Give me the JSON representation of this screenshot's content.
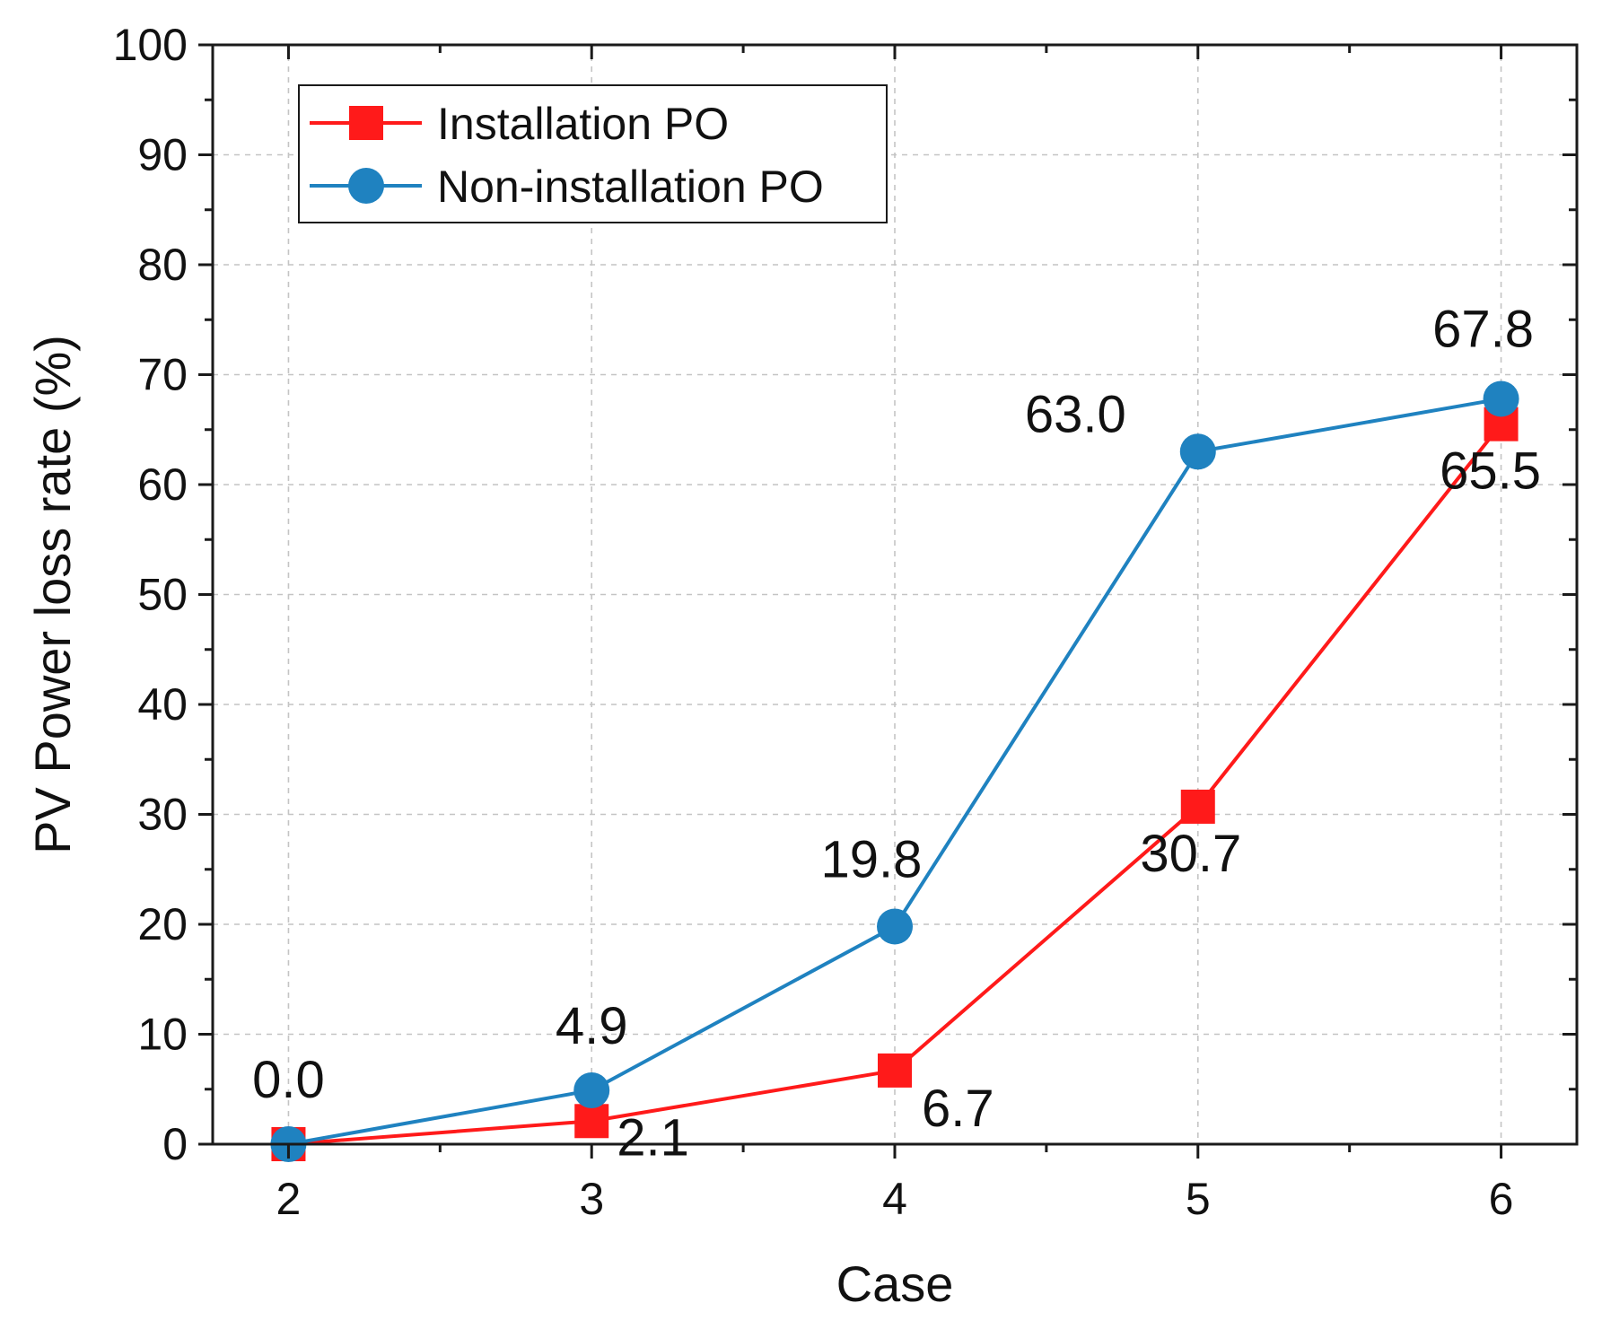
{
  "chart_data": {
    "type": "line",
    "xlabel": "Case",
    "ylabel": "PV Power loss rate (%)",
    "x": [
      2,
      3,
      4,
      5,
      6
    ],
    "xlim": [
      1.75,
      6.25
    ],
    "ylim": [
      0,
      100
    ],
    "xticks": [
      "2",
      "3",
      "4",
      "5",
      "6"
    ],
    "yticks": [
      "0",
      "10",
      "20",
      "30",
      "40",
      "50",
      "60",
      "70",
      "80",
      "90",
      "100"
    ],
    "grid": true,
    "legend_position": "top-left",
    "series": [
      {
        "name": "Installation PO",
        "color": "#ff1a1a",
        "marker": "square",
        "values": [
          0.0,
          2.1,
          6.7,
          30.7,
          65.5
        ],
        "labels": [
          "",
          "2.1",
          "6.7",
          "30.7",
          "65.5"
        ]
      },
      {
        "name": "Non-installation PO",
        "color": "#1f82c0",
        "marker": "circle",
        "values": [
          0.0,
          4.9,
          19.8,
          63.0,
          67.8
        ],
        "labels": [
          "0.0",
          "4.9",
          "19.8",
          "63.0",
          "67.8"
        ]
      }
    ]
  }
}
